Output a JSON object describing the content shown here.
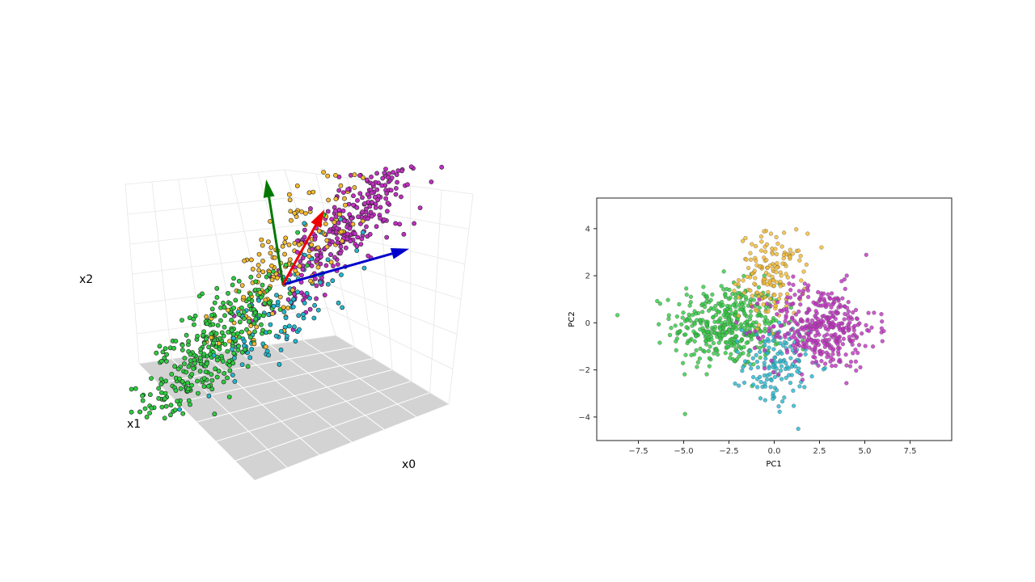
{
  "chart_data": [
    {
      "type": "scatter",
      "projection": "3d",
      "xlabel": "x0",
      "ylabel": "x1",
      "zlabel": "x2",
      "grid": true,
      "floor_color": "#d3d3d3",
      "clusters": [
        {
          "color": "#2ecc40",
          "center": [
            -1.6,
            0.0,
            -0.1
          ],
          "count": 330
        },
        {
          "color": "#f4b92e",
          "center": [
            0.0,
            -0.2,
            0.35
          ],
          "count": 150
        },
        {
          "color": "#20b8cf",
          "center": [
            0.05,
            0.25,
            -0.3
          ],
          "count": 110
        },
        {
          "color": "#c22fc3",
          "center": [
            1.5,
            0.0,
            0.15
          ],
          "count": 300
        }
      ],
      "vectors": [
        {
          "color": "#0000cc",
          "direction": [
            2.6,
            0.0,
            0.0
          ]
        },
        {
          "color": "#007800",
          "direction": [
            0.0,
            0.0,
            2.6
          ]
        },
        {
          "color": "#ee0000",
          "direction": [
            0.0,
            -1.6,
            0.0
          ]
        }
      ]
    },
    {
      "type": "scatter",
      "xlabel": "PC1",
      "ylabel": "PC2",
      "xlim": [
        -9.8,
        9.8
      ],
      "ylim": [
        -5.0,
        5.3
      ],
      "xticks": [
        -7.5,
        -5.0,
        -2.5,
        0.0,
        2.5,
        5.0,
        7.5
      ],
      "xtick_labels": [
        "−7.5",
        "−5.0",
        "−2.5",
        "0.0",
        "2.5",
        "5.0",
        "7.5"
      ],
      "yticks": [
        -4,
        -2,
        0,
        2,
        4
      ],
      "ytick_labels": [
        "−4",
        "−2",
        "0",
        "2",
        "4"
      ],
      "clusters": [
        {
          "color": "#2ecc40",
          "center": [
            -2.6,
            -0.1
          ],
          "count": 420
        },
        {
          "color": "#f4b92e",
          "center": [
            -0.1,
            2.0
          ],
          "count": 150
        },
        {
          "color": "#20b8cf",
          "center": [
            0.1,
            -1.8
          ],
          "count": 140
        },
        {
          "color": "#c22fc3",
          "center": [
            2.6,
            -0.2
          ],
          "count": 380
        }
      ]
    }
  ]
}
